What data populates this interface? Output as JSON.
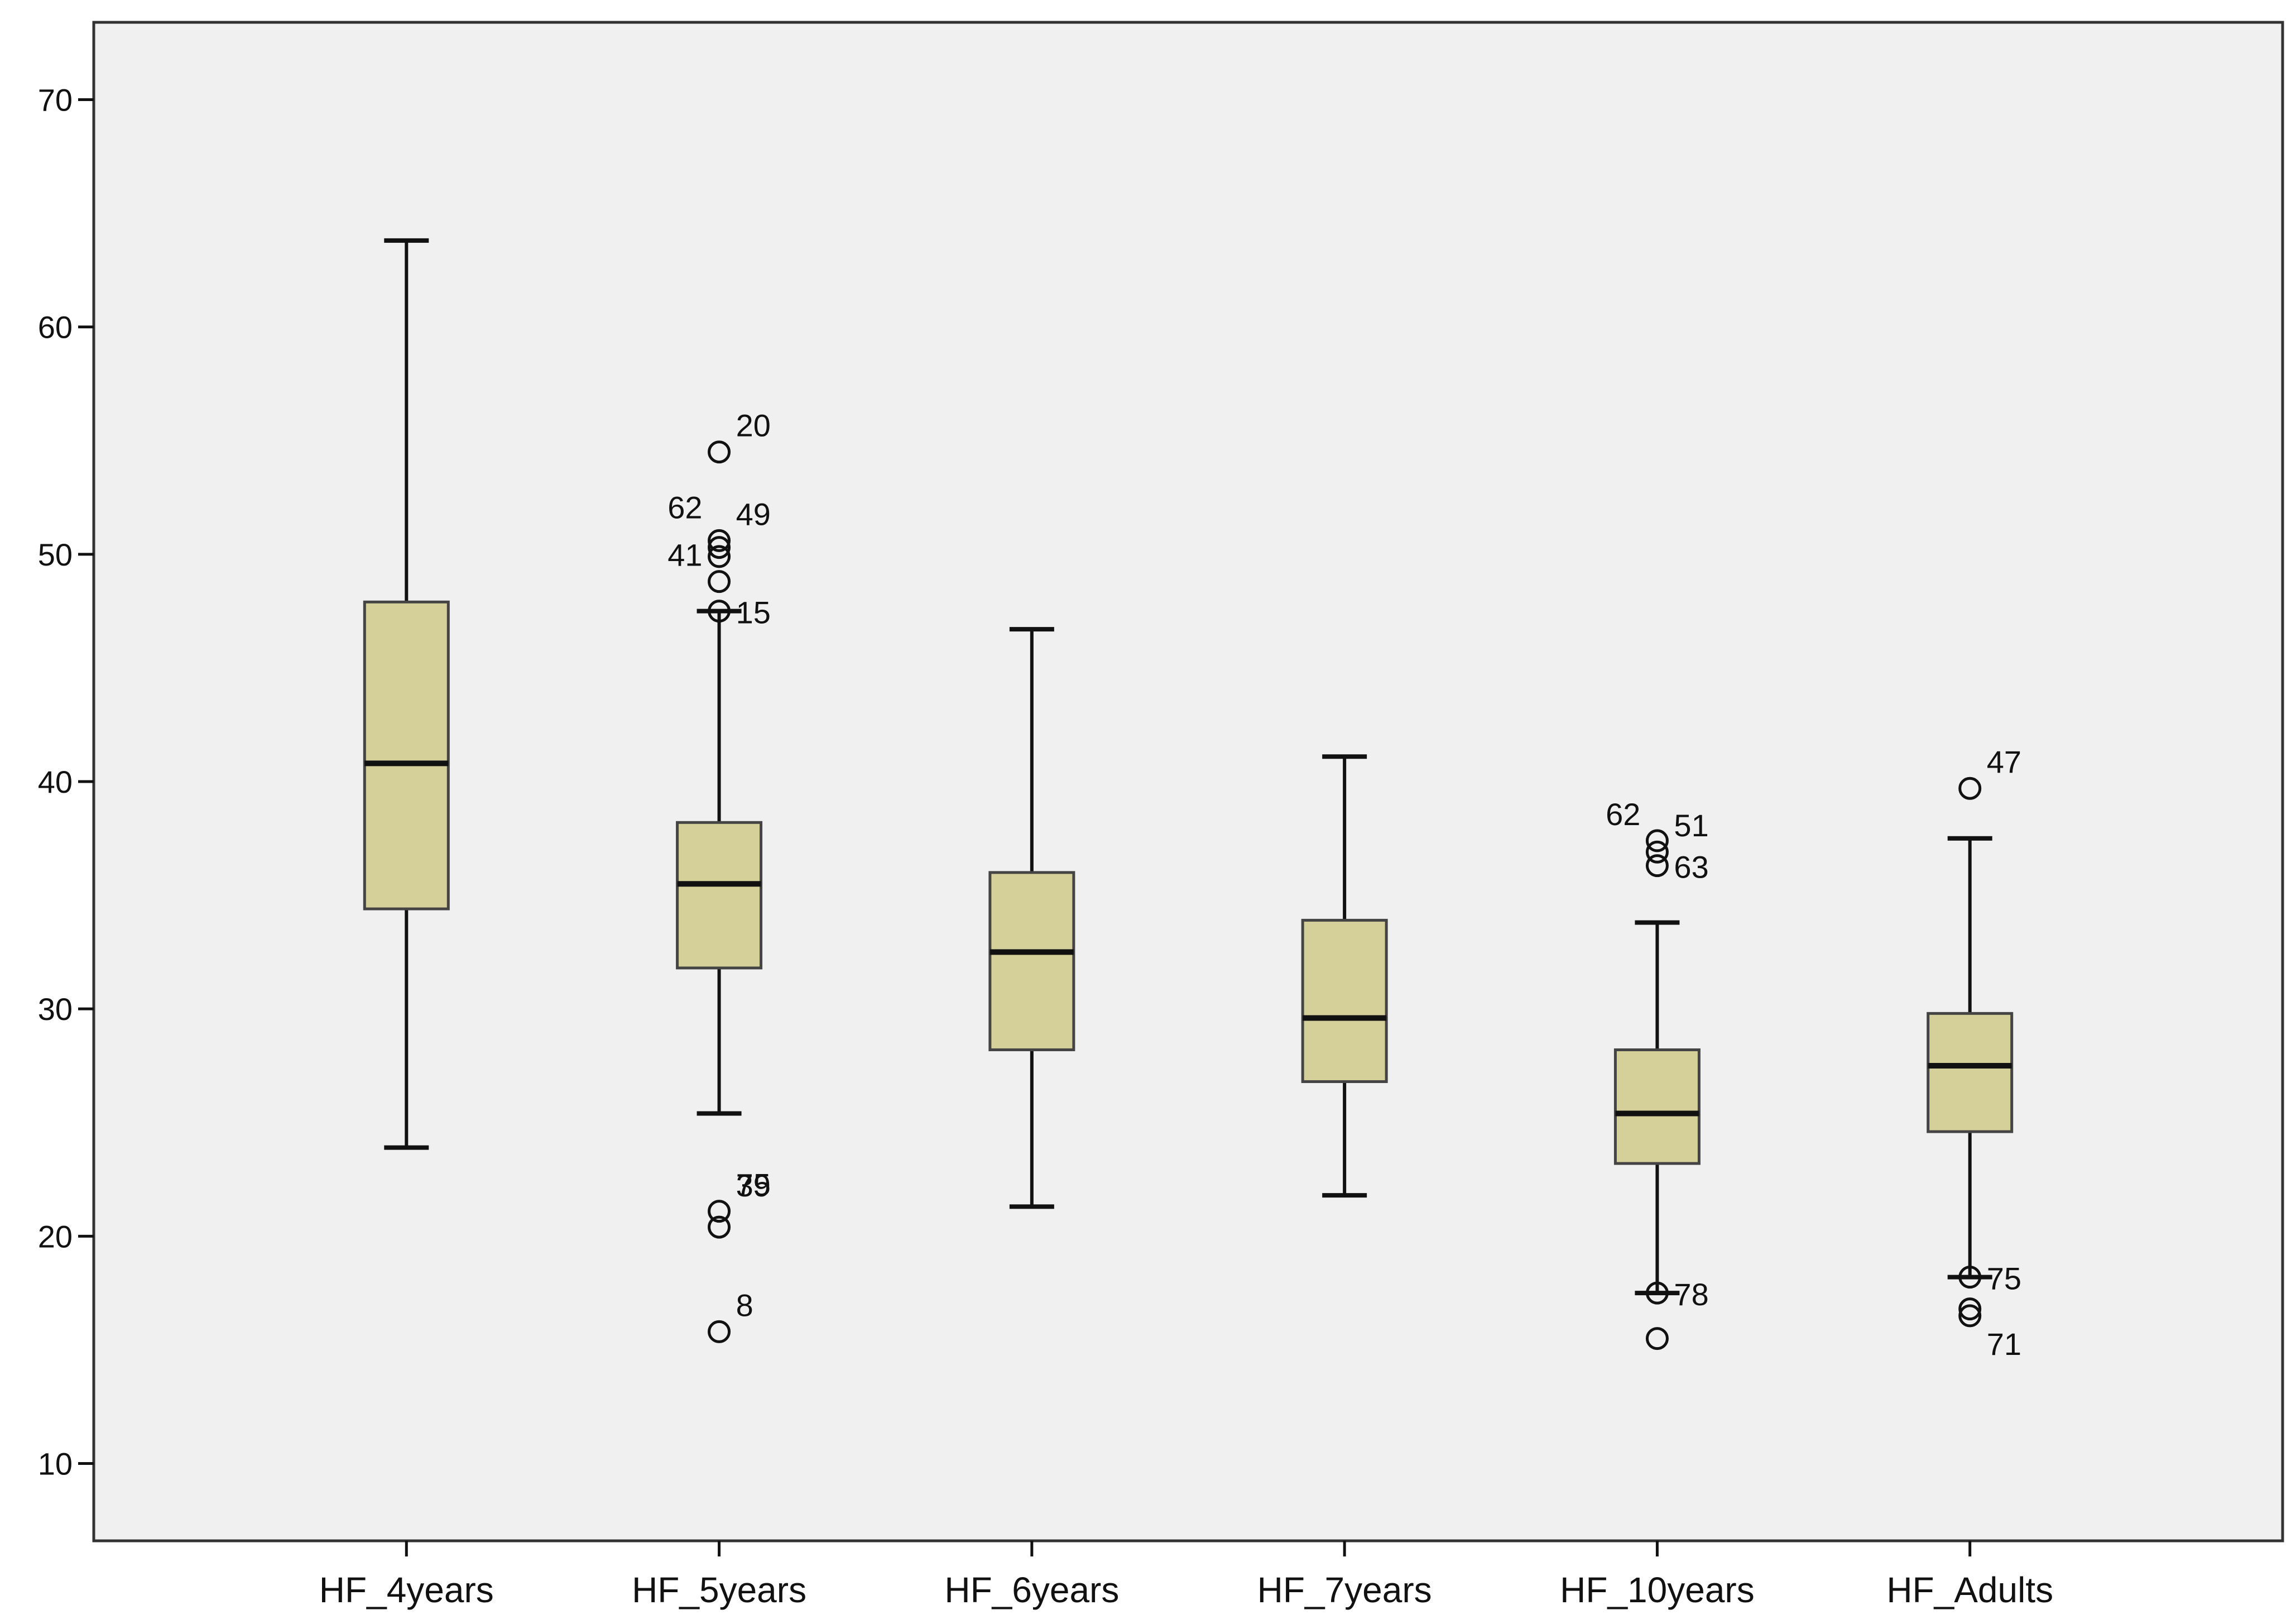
{
  "chart_data": {
    "type": "box",
    "title": "",
    "xlabel": "",
    "ylabel": "",
    "ylim": [
      6.6,
      73.4
    ],
    "yticks": [
      10,
      20,
      30,
      40,
      50,
      60,
      70
    ],
    "yticks_text": [
      "10",
      "20",
      "30",
      "40",
      "50",
      "60",
      "70"
    ],
    "grid": false,
    "colors": {
      "plot_bg": "#f0f0f0",
      "box_fill": "#d5d09a",
      "stroke": "#111111"
    },
    "categories": [
      "HF_4years",
      "HF_5years",
      "HF_6years",
      "HF_7years",
      "HF_10years",
      "HF_Adults"
    ],
    "boxes": [
      {
        "q1": 34.4,
        "median": 40.8,
        "q3": 47.9,
        "whisker_low": 23.9,
        "whisker_high": 63.8,
        "outliers": []
      },
      {
        "q1": 31.8,
        "median": 35.5,
        "q3": 38.2,
        "whisker_low": 25.4,
        "whisker_high": 47.5,
        "outliers": [
          {
            "value": 54.5,
            "label": "20"
          },
          {
            "value": 50.6,
            "label": "62"
          },
          {
            "value": 50.3,
            "label": "49"
          },
          {
            "value": 49.9,
            "label": ""
          },
          {
            "value": 48.8,
            "label": "41"
          },
          {
            "value": 47.5,
            "label": "15"
          },
          {
            "value": 21.1,
            "label": "75"
          },
          {
            "value": 20.4,
            "label": "39"
          },
          {
            "value": 15.8,
            "label": "8"
          }
        ]
      },
      {
        "q1": 28.2,
        "median": 32.5,
        "q3": 36.0,
        "whisker_low": 21.3,
        "whisker_high": 46.7,
        "outliers": []
      },
      {
        "q1": 26.8,
        "median": 29.6,
        "q3": 33.9,
        "whisker_low": 21.8,
        "whisker_high": 41.1,
        "outliers": []
      },
      {
        "q1": 23.2,
        "median": 25.4,
        "q3": 28.2,
        "whisker_low": 17.5,
        "whisker_high": 33.8,
        "outliers": [
          {
            "value": 37.4,
            "label": "62"
          },
          {
            "value": 36.9,
            "label": "51"
          },
          {
            "value": 36.3,
            "label": "63"
          },
          {
            "value": 17.5,
            "label": "78"
          },
          {
            "value": 15.5,
            "label": ""
          }
        ]
      },
      {
        "q1": 24.6,
        "median": 27.5,
        "q3": 29.8,
        "whisker_low": 18.2,
        "whisker_high": 37.5,
        "outliers": [
          {
            "value": 39.7,
            "label": "47"
          },
          {
            "value": 18.2,
            "label": "75"
          },
          {
            "value": 16.8,
            "label": ""
          },
          {
            "value": 16.5,
            "label": "71"
          }
        ]
      }
    ]
  }
}
